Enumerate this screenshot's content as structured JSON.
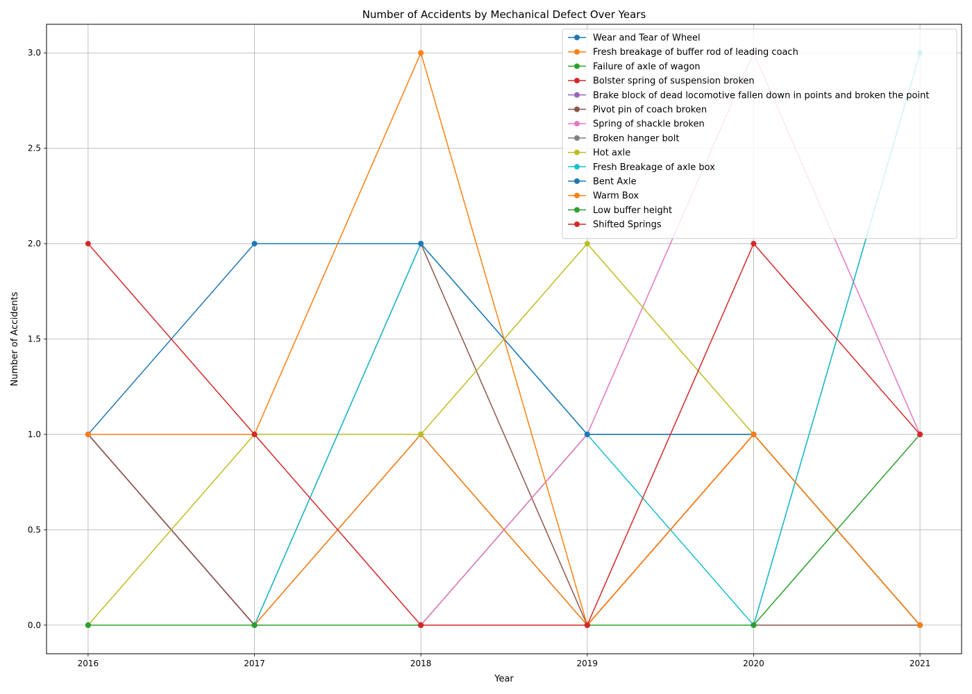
{
  "chart_data": {
    "type": "line",
    "title": "Number of Accidents by Mechanical Defect Over Years",
    "xlabel": "Year",
    "ylabel": "Number of Accidents",
    "x": [
      2016,
      2017,
      2018,
      2019,
      2020,
      2021
    ],
    "x_tick_labels": [
      "2016",
      "2017",
      "2018",
      "2019",
      "2020",
      "2021"
    ],
    "y_ticks": [
      0.0,
      0.5,
      1.0,
      1.5,
      2.0,
      2.5,
      3.0
    ],
    "y_tick_labels": [
      "0.0",
      "0.5",
      "1.0",
      "1.5",
      "2.0",
      "2.5",
      "3.0"
    ],
    "xlim": [
      2015.75,
      2021.25
    ],
    "ylim": [
      -0.15,
      3.15
    ],
    "grid": true,
    "legend_position": "top-right",
    "series": [
      {
        "name": "Wear and Tear of Wheel",
        "color": "#1f77b4",
        "values": [
          1,
          0,
          1,
          0,
          1,
          0
        ]
      },
      {
        "name": "Fresh breakage of buffer rod of leading coach",
        "color": "#ff7f0e",
        "values": [
          0,
          0,
          1,
          0,
          1,
          0
        ]
      },
      {
        "name": "Failure of axle of wagon",
        "color": "#2ca02c",
        "values": [
          0,
          0,
          0,
          1,
          1,
          0
        ]
      },
      {
        "name": "Bolster spring of suspension broken",
        "color": "#d62728",
        "values": [
          1,
          0,
          0,
          0,
          1,
          0
        ]
      },
      {
        "name": "Brake block of dead locomotive fallen down in points and broken the point",
        "color": "#9467bd",
        "values": [
          1,
          0,
          0,
          0,
          0,
          0
        ]
      },
      {
        "name": "Pivot pin of coach broken",
        "color": "#8c564b",
        "values": [
          1,
          0,
          2,
          0,
          0,
          0
        ]
      },
      {
        "name": "Spring of shackle broken",
        "color": "#e377c2",
        "values": [
          0,
          0,
          0,
          1,
          3,
          1
        ]
      },
      {
        "name": "Broken hanger bolt",
        "color": "#7f7f7f",
        "values": [
          0,
          0,
          0,
          0,
          0,
          3
        ]
      },
      {
        "name": "Hot axle",
        "color": "#bcbd22",
        "values": [
          0,
          1,
          1,
          2,
          1,
          0
        ]
      },
      {
        "name": "Fresh Breakage of axle box",
        "color": "#17becf",
        "values": [
          0,
          0,
          2,
          1,
          0,
          3
        ]
      },
      {
        "name": "Bent Axle",
        "color": "#1f77b4",
        "values": [
          1,
          2,
          2,
          1,
          1,
          0
        ]
      },
      {
        "name": "Warm Box",
        "color": "#ff7f0e",
        "values": [
          1,
          1,
          3,
          0,
          1,
          0
        ]
      },
      {
        "name": "Low buffer height",
        "color": "#2ca02c",
        "values": [
          0,
          0,
          0,
          0,
          0,
          1
        ]
      },
      {
        "name": "Shifted Springs",
        "color": "#d62728",
        "values": [
          2,
          1,
          0,
          0,
          2,
          1
        ]
      }
    ]
  }
}
